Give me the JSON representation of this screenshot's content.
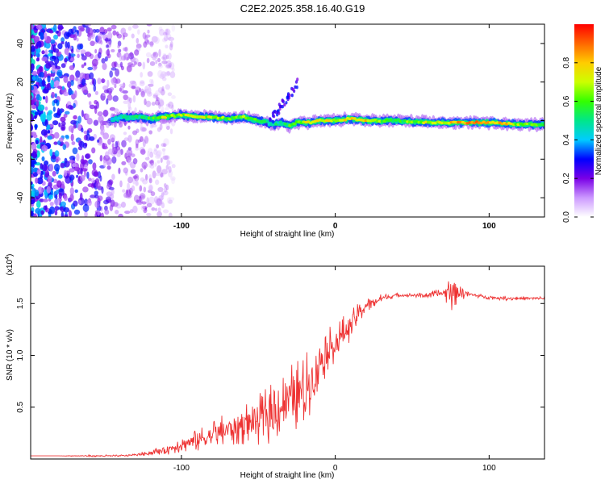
{
  "chart_data": [
    {
      "type": "heatmap",
      "title": "C2E2.2025.358.16.40.G19",
      "xlabel": "Height of straight line (km)",
      "ylabel": "Frequency (Hz)",
      "xlim": [
        -198,
        136
      ],
      "ylim": [
        -50,
        50
      ],
      "xticks": [
        -100,
        0,
        100
      ],
      "yticks": [
        -40,
        -20,
        0,
        20,
        40
      ],
      "colorbar": {
        "label": "Normalized spectral amplitude",
        "range": [
          0,
          1
        ],
        "ticks": [
          0.0,
          0.2,
          0.4,
          0.6,
          0.8
        ],
        "tick_labels": [
          "0.0",
          "0.2",
          "0.4",
          "0.6",
          "0.8"
        ],
        "colors": [
          "#ffffff",
          "#cc99ff",
          "#7a00e6",
          "#0000ff",
          "#00ccff",
          "#00e68a",
          "#33ff00",
          "#ccff00",
          "#ffcc00",
          "#ff6600",
          "#ff0000"
        ]
      },
      "ridge": {
        "x": [
          -145,
          -130,
          -120,
          -110,
          -100,
          -90,
          -80,
          -70,
          -60,
          -50,
          -45,
          -40,
          -35,
          -30,
          -25,
          -20,
          -15,
          -10,
          -5,
          0,
          10,
          20,
          30,
          40,
          60,
          80,
          100,
          120,
          136
        ],
        "frequency": [
          1,
          2,
          1,
          2,
          3,
          2,
          2,
          1,
          2,
          0,
          -1,
          -2,
          -1,
          -3,
          -1,
          -1,
          -1,
          0,
          0,
          0,
          1,
          0,
          0,
          0,
          -1,
          -1,
          -1,
          -2,
          -2
        ],
        "amplitude": [
          0.45,
          0.55,
          0.6,
          0.75,
          0.7,
          0.8,
          0.75,
          0.65,
          0.7,
          0.6,
          0.55,
          0.5,
          0.55,
          0.6,
          0.7,
          0.75,
          0.8,
          0.85,
          0.8,
          0.75,
          0.8,
          0.85,
          0.7,
          0.6,
          0.75,
          0.85,
          0.95,
          0.7,
          0.6
        ]
      },
      "noise_region_x": [
        -198,
        -125
      ]
    },
    {
      "type": "line",
      "xlabel": "Height of straight line (km)",
      "ylabel": "SNR (10 * v/v)",
      "scale_label": "(x10^4)",
      "scale_base": "(x10",
      "scale_exp": "4",
      "xlim": [
        -198,
        136
      ],
      "ylim": [
        0,
        1.86
      ],
      "xticks": [
        -100,
        0,
        100
      ],
      "yticks": [
        0.5,
        1.0,
        1.5
      ],
      "ytick_labels": [
        "0.5",
        "1.0",
        "1.5"
      ],
      "color": "#ee3333",
      "series": [
        {
          "name": "SNR",
          "x": [
            -198,
            -180,
            -160,
            -140,
            -130,
            -120,
            -110,
            -100,
            -90,
            -80,
            -70,
            -60,
            -50,
            -40,
            -30,
            -20,
            -15,
            -10,
            -5,
            0,
            5,
            10,
            15,
            20,
            30,
            40,
            50,
            60,
            70,
            75,
            80,
            85,
            90,
            100,
            110,
            120,
            136
          ],
          "values": [
            0.03,
            0.03,
            0.03,
            0.03,
            0.04,
            0.06,
            0.09,
            0.14,
            0.18,
            0.23,
            0.28,
            0.33,
            0.38,
            0.45,
            0.58,
            0.65,
            0.78,
            0.95,
            1.05,
            1.12,
            1.2,
            1.3,
            1.4,
            1.48,
            1.55,
            1.58,
            1.58,
            1.58,
            1.6,
            1.62,
            1.62,
            1.6,
            1.58,
            1.56,
            1.55,
            1.55,
            1.55
          ],
          "noise": [
            0.0,
            0.0,
            0.01,
            0.01,
            0.01,
            0.03,
            0.05,
            0.08,
            0.12,
            0.15,
            0.17,
            0.2,
            0.25,
            0.3,
            0.33,
            0.35,
            0.35,
            0.3,
            0.22,
            0.18,
            0.18,
            0.15,
            0.1,
            0.08,
            0.04,
            0.02,
            0.02,
            0.03,
            0.05,
            0.2,
            0.12,
            0.04,
            0.02,
            0.02,
            0.02,
            0.02,
            0.02
          ]
        }
      ]
    }
  ]
}
